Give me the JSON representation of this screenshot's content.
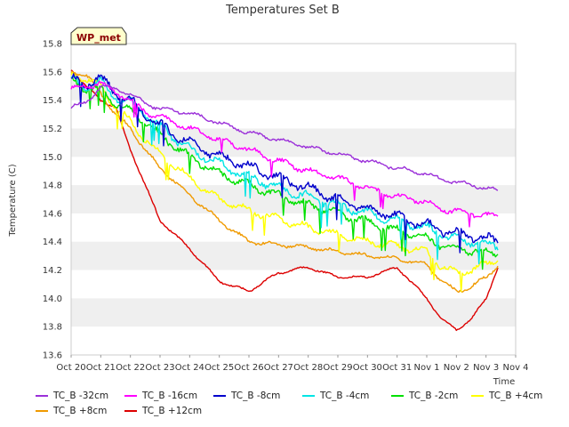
{
  "chart_data": {
    "type": "line",
    "title": "Temperatures Set B",
    "xlabel": "Time",
    "ylabel": "Temperature (C)",
    "annotation": "WP_met",
    "x_ticks": [
      "Oct 20",
      "Oct 21",
      "Oct 22",
      "Oct 23",
      "Oct 24",
      "Oct 25",
      "Oct 26",
      "Oct 27",
      "Oct 28",
      "Oct 29",
      "Oct 30",
      "Oct 31",
      "Nov 1",
      "Nov 2",
      "Nov 3",
      "Nov 4"
    ],
    "y_ticks": [
      "13.6",
      "13.8",
      "14.0",
      "14.2",
      "14.4",
      "14.6",
      "14.8",
      "15.0",
      "15.2",
      "15.4",
      "15.6",
      "15.8"
    ],
    "xlim": [
      0,
      15
    ],
    "ylim": [
      13.6,
      15.8
    ],
    "x_unit": "days since Oct 20",
    "x": [
      0,
      0.5,
      1,
      1.5,
      2,
      2.5,
      3,
      4,
      5,
      6,
      7,
      8,
      9,
      10,
      11,
      12,
      12.5,
      13,
      13.5,
      14,
      14.4
    ],
    "series": [
      {
        "name": "TC_B -32cm",
        "color": "#9b30d9",
        "values": [
          15.35,
          15.38,
          15.5,
          15.48,
          15.44,
          15.38,
          15.34,
          15.31,
          15.24,
          15.17,
          15.12,
          15.07,
          15.02,
          14.97,
          14.92,
          14.88,
          14.84,
          14.82,
          14.8,
          14.78,
          14.76
        ]
      },
      {
        "name": "TC_B -16cm",
        "color": "#ff00ff",
        "values": [
          15.48,
          15.5,
          15.52,
          15.46,
          15.4,
          15.32,
          15.28,
          15.2,
          15.12,
          15.05,
          14.97,
          14.9,
          14.85,
          14.78,
          14.72,
          14.68,
          14.63,
          14.62,
          14.6,
          14.59,
          14.57
        ]
      },
      {
        "name": "TC_B -8cm",
        "color": "#0000cc",
        "values": [
          15.55,
          15.52,
          15.55,
          15.46,
          15.4,
          15.3,
          15.22,
          15.1,
          15.0,
          14.93,
          14.85,
          14.78,
          14.7,
          14.63,
          14.58,
          14.52,
          14.48,
          14.46,
          14.44,
          14.42,
          14.4
        ]
      },
      {
        "name": "TC_B -4cm",
        "color": "#00e5e5",
        "values": [
          15.55,
          15.5,
          15.52,
          15.42,
          15.38,
          15.3,
          15.22,
          15.05,
          14.95,
          14.86,
          14.78,
          14.72,
          14.66,
          14.6,
          14.55,
          14.5,
          14.45,
          14.42,
          14.4,
          14.38,
          14.37
        ]
      },
      {
        "name": "TC_B -2cm",
        "color": "#00e000",
        "values": [
          15.55,
          15.48,
          15.48,
          15.38,
          15.32,
          15.25,
          15.15,
          15.0,
          14.88,
          14.8,
          14.73,
          14.66,
          14.6,
          14.54,
          14.48,
          14.42,
          14.38,
          14.35,
          14.34,
          14.33,
          14.32
        ]
      },
      {
        "name": "TC_B +4cm",
        "color": "#ffff00",
        "values": [
          15.58,
          15.55,
          15.5,
          15.35,
          15.25,
          15.12,
          15.02,
          14.85,
          14.7,
          14.62,
          14.56,
          14.5,
          14.45,
          14.4,
          14.37,
          14.33,
          14.22,
          14.18,
          14.2,
          14.24,
          14.28
        ]
      },
      {
        "name": "TC_B +8cm",
        "color": "#f09a00",
        "values": [
          15.6,
          15.58,
          15.45,
          15.3,
          15.2,
          15.05,
          14.92,
          14.73,
          14.55,
          14.4,
          14.38,
          14.36,
          14.33,
          14.3,
          14.28,
          14.24,
          14.12,
          14.05,
          14.08,
          14.15,
          14.23
        ]
      },
      {
        "name": "TC_B +12cm",
        "color": "#dd0000",
        "values": [
          15.62,
          15.5,
          15.4,
          15.35,
          15.05,
          14.8,
          14.55,
          14.35,
          14.12,
          14.05,
          14.18,
          14.22,
          14.15,
          14.15,
          14.22,
          14.0,
          13.85,
          13.78,
          13.85,
          14.0,
          14.22
        ]
      }
    ],
    "legend_placement": "bottom",
    "grid": "horizontal bands",
    "colors": {
      "plot_band": "#efefef",
      "background": "#ffffff",
      "annotation_bg": "#ffffcc",
      "annotation_text": "#8b0000"
    }
  }
}
